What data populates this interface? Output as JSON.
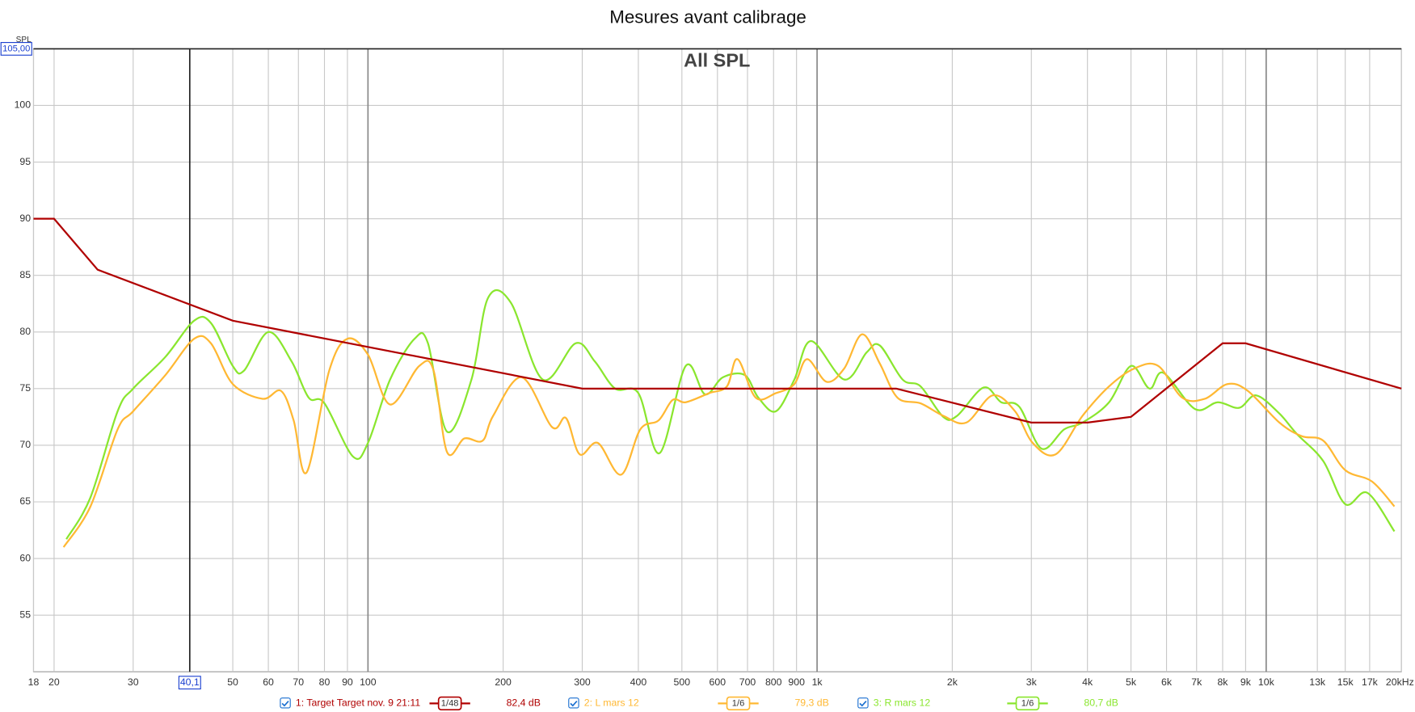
{
  "chart_data": {
    "type": "line",
    "title": "Mesures avant calibrage",
    "subtitle": "All SPL",
    "y_label": "SPL",
    "xscale": "log",
    "xlim": [
      18,
      20000
    ],
    "ylim": [
      50,
      105
    ],
    "yticks": [
      55,
      60,
      65,
      70,
      75,
      80,
      85,
      90,
      95,
      100
    ],
    "xticks": [
      18,
      20,
      30,
      50,
      60,
      70,
      80,
      90,
      100,
      200,
      300,
      400,
      500,
      600,
      700,
      800,
      900,
      {
        "value": 1000,
        "label": "1k"
      },
      {
        "value": 2000,
        "label": "2k"
      },
      {
        "value": 3000,
        "label": "3k"
      },
      {
        "value": 4000,
        "label": "4k"
      },
      {
        "value": 5000,
        "label": "5k"
      },
      {
        "value": 6000,
        "label": "6k"
      },
      {
        "value": 7000,
        "label": "7k"
      },
      {
        "value": 8000,
        "label": "8k"
      },
      {
        "value": 9000,
        "label": "9k"
      },
      {
        "value": 10000,
        "label": "10k"
      },
      {
        "value": 13000,
        "label": "13k"
      },
      {
        "value": 15000,
        "label": "15k"
      },
      {
        "value": 17000,
        "label": "17k"
      },
      {
        "value": 20000,
        "label": "20kHz"
      }
    ],
    "grid": true,
    "cursor": {
      "x": 40.1,
      "x_label": "40,1",
      "y": 105,
      "y_label": "105,00"
    },
    "series": [
      {
        "name": "1: Target Target nov. 9 21:11",
        "color": "#b00000",
        "smoothing": "1/48",
        "level": "82,4 dB",
        "x": [
          18,
          20,
          25,
          50,
          300,
          1500,
          3000,
          4000,
          5000,
          8000,
          9000,
          20000
        ],
        "values": [
          90,
          90,
          85.5,
          81,
          75,
          75,
          72,
          72,
          72.5,
          79,
          79,
          75
        ]
      },
      {
        "name": "2: L mars 12",
        "color": "#ffb833",
        "smoothing": "1/6",
        "level": "79,3 dB",
        "x": [
          21,
          24.1,
          27.7,
          30,
          35.4,
          41,
          44.7,
          50,
          58.3,
          64,
          68.3,
          73,
          82,
          90,
          100,
          112,
          130,
          140,
          150,
          164,
          180,
          190,
          220,
          257,
          276,
          296,
          325,
          366,
          404,
          444,
          477,
          510,
          575,
          630,
          665,
          730,
          810,
          890,
          950,
          1050,
          1150,
          1260,
          1380,
          1510,
          1700,
          1910,
          2150,
          2460,
          2760,
          3020,
          3400,
          3900,
          4470,
          5100,
          5750,
          6500,
          7300,
          8200,
          9100,
          10700,
          12000,
          13400,
          15000,
          17200,
          19300
        ],
        "values": [
          61,
          64.6,
          71.4,
          73,
          76.2,
          79.4,
          79,
          75.4,
          74.1,
          74.8,
          72.2,
          67.6,
          76.6,
          79.4,
          78,
          73.6,
          77,
          76.6,
          69.4,
          70.6,
          70.4,
          72.6,
          76,
          71.6,
          72.4,
          69.2,
          70.2,
          67.4,
          71.4,
          72.2,
          74,
          73.8,
          74.6,
          75.2,
          77.6,
          74.2,
          74.6,
          75.4,
          77.6,
          75.6,
          76.8,
          79.8,
          77.2,
          74.2,
          73.7,
          72.6,
          72,
          74.4,
          73,
          70.2,
          69.2,
          72.6,
          75.2,
          76.8,
          77,
          74.2,
          74.1,
          75.4,
          74.8,
          72,
          70.8,
          70.4,
          67.8,
          66.8,
          64.6
        ]
      },
      {
        "name": "3: R mars 12",
        "color": "#8ae62e",
        "smoothing": "1/6",
        "level": "80,7 dB",
        "x": [
          21.3,
          24.1,
          27.7,
          30,
          35.4,
          41,
          44.7,
          50,
          53,
          60,
          67.6,
          73.8,
          80,
          92.6,
          100,
          112,
          127,
          136,
          150,
          170,
          185,
          208,
          245,
          290,
          320,
          355,
          400,
          446,
          510,
          563,
          617,
          690,
          740,
          810,
          890,
          970,
          1150,
          1290,
          1380,
          1550,
          1700,
          1910,
          2050,
          2350,
          2570,
          2820,
          3160,
          3550,
          3900,
          4470,
          5000,
          5500,
          5900,
          6940,
          7800,
          8700,
          9500,
          10700,
          11700,
          13400,
          15000,
          16800,
          19300
        ],
        "values": [
          61.7,
          65.4,
          73,
          75,
          77.8,
          81,
          80.8,
          77,
          76.6,
          80,
          77.4,
          74.2,
          73.7,
          69,
          70.2,
          75.8,
          79.4,
          79,
          71.2,
          75.8,
          83,
          82.6,
          75.8,
          79,
          77.4,
          75,
          74.6,
          69.3,
          77,
          74.5,
          76,
          76.2,
          74.2,
          73,
          75.8,
          79.2,
          75.8,
          78.2,
          78.8,
          75.8,
          75.2,
          72.5,
          72.6,
          75.1,
          73.8,
          73.4,
          69.7,
          71.4,
          72,
          73.8,
          77,
          75,
          76.4,
          73.2,
          73.8,
          73.3,
          74.4,
          72.8,
          71,
          68.6,
          64.8,
          65.8,
          62.4
        ]
      }
    ]
  }
}
